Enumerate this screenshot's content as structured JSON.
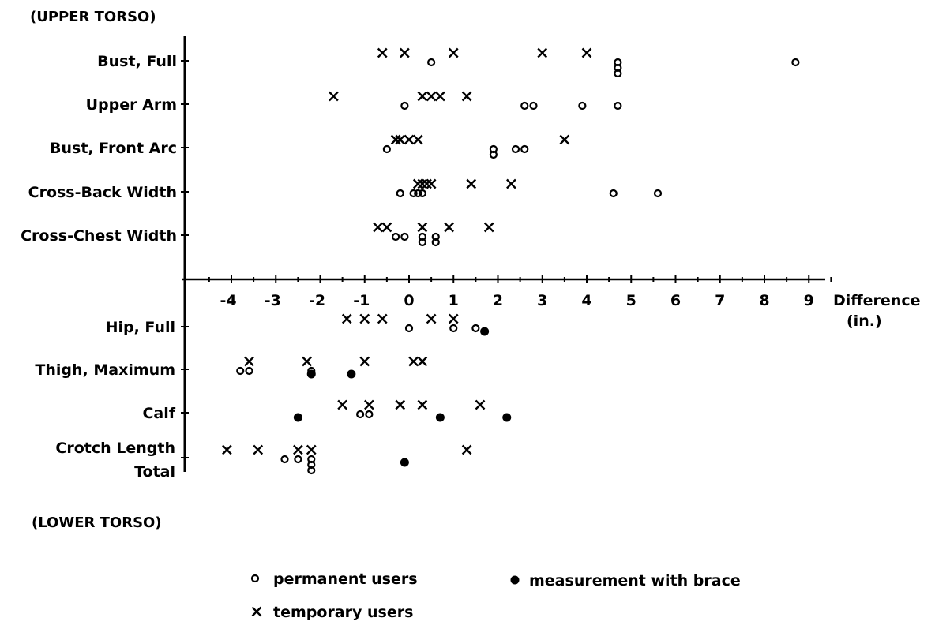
{
  "chart_data": {
    "type": "scatter",
    "upper_section_label": "(UPPER TORSO)",
    "lower_section_label": "(LOWER TORSO)",
    "xlabel": "Difference",
    "xlabel_unit": "(in.)",
    "xlim": [
      -4.5,
      9.5
    ],
    "x_ticks": [
      -4,
      -3,
      -2,
      -1,
      0,
      1,
      2,
      3,
      4,
      5,
      6,
      7,
      8,
      9
    ],
    "x_tick_labels": [
      "-4",
      "-3",
      "-2",
      "-1",
      "0",
      "1",
      "2",
      "3",
      "4",
      "5",
      "6",
      "7",
      "8",
      "9"
    ],
    "upper_categories": [
      "Bust, Full",
      "Upper Arm",
      "Bust, Front Arc",
      "Cross-Back Width",
      "Cross-Chest Width"
    ],
    "lower_categories": [
      {
        "line1": "Hip, Full",
        "line2": ""
      },
      {
        "line1": "Thigh, Maximum",
        "line2": ""
      },
      {
        "line1": "Calf",
        "line2": ""
      },
      {
        "line1": "Crotch Length",
        "line2": "Total"
      }
    ],
    "series": [
      {
        "name": "permanent users",
        "marker": "open-circle",
        "points": {
          "Bust, Full": [
            0.5,
            4.7,
            4.7,
            4.7,
            8.7
          ],
          "Upper Arm": [
            -0.1,
            2.6,
            2.8,
            3.9,
            4.7
          ],
          "Bust, Front Arc": [
            -0.5,
            1.9,
            1.9,
            2.4,
            2.6
          ],
          "Cross-Back Width": [
            -0.2,
            0.1,
            0.2,
            0.3,
            4.6,
            5.6
          ],
          "Cross-Chest Width": [
            -0.3,
            -0.1,
            0.3,
            0.3,
            0.6,
            0.6
          ],
          "Hip, Full": [
            0.0,
            1.0,
            1.5
          ],
          "Thigh, Maximum": [
            -3.8,
            -3.6,
            -2.2
          ],
          "Calf": [
            -1.1,
            -0.9
          ],
          "Crotch Length": [
            -2.8,
            -2.5,
            -2.2,
            -2.2,
            -2.2
          ]
        }
      },
      {
        "name": "temporary users",
        "marker": "x",
        "points": {
          "Bust, Full": [
            -0.6,
            -0.1,
            1.0,
            3.0,
            4.0
          ],
          "Upper Arm": [
            -1.7,
            0.3,
            0.5,
            0.7,
            1.3
          ],
          "Bust, Front Arc": [
            -0.3,
            -0.2,
            0.0,
            0.2,
            3.5
          ],
          "Cross-Back Width": [
            0.2,
            0.3,
            0.4,
            0.5,
            1.4,
            2.3
          ],
          "Cross-Chest Width": [
            -0.7,
            -0.5,
            0.3,
            0.9,
            1.8
          ],
          "Hip, Full": [
            -1.4,
            -1.0,
            -0.6,
            0.5,
            1.0
          ],
          "Thigh, Maximum": [
            -3.6,
            -2.3,
            -1.0,
            0.1,
            0.3
          ],
          "Calf": [
            -1.5,
            -0.9,
            -0.2,
            0.3,
            1.6
          ],
          "Crotch Length": [
            -4.1,
            -3.4,
            -2.5,
            -2.2,
            1.3
          ]
        }
      },
      {
        "name": "measurement with brace",
        "marker": "filled-circle",
        "points": {
          "Hip, Full": [
            1.7
          ],
          "Thigh, Maximum": [
            -2.2,
            -1.3
          ],
          "Calf": [
            -2.5,
            0.7,
            2.2
          ],
          "Crotch Length": [
            -0.1
          ]
        }
      }
    ],
    "legend": [
      {
        "marker": "open-circle",
        "label": "permanent users"
      },
      {
        "marker": "filled-circle",
        "label": "measurement with brace"
      },
      {
        "marker": "x",
        "label": "temporary users"
      }
    ],
    "legend_position": "bottom",
    "grid": false
  }
}
